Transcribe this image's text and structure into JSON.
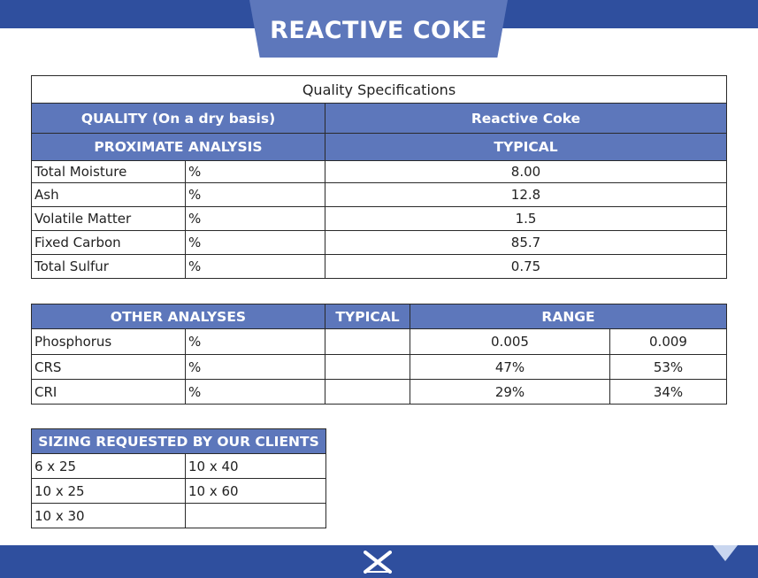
{
  "title": "REACTIVE COKE",
  "spec_table": {
    "caption": "Quality Specifications",
    "quality_header": "QUALITY (On a dry basis)",
    "product_header": "Reactive Coke",
    "section_header": "PROXIMATE ANALYSIS",
    "typical_header": "TYPICAL",
    "rows": [
      {
        "name": "Total Moisture",
        "unit": "%",
        "typical": "8.00"
      },
      {
        "name": "Ash",
        "unit": "%",
        "typical": "12.8"
      },
      {
        "name": "Volatile Matter",
        "unit": "%",
        "typical": "1.5"
      },
      {
        "name": "Fixed Carbon",
        "unit": "%",
        "typical": "85.7"
      },
      {
        "name": "Total Sulfur",
        "unit": "%",
        "typical": "0.75"
      }
    ]
  },
  "other_table": {
    "header_name": "OTHER ANALYSES",
    "header_typical": "TYPICAL",
    "header_range": "RANGE",
    "rows": [
      {
        "name": "Phosphorus",
        "unit": "%",
        "typical": "",
        "min": "0.005",
        "max": "0.009"
      },
      {
        "name": "CRS",
        "unit": "%",
        "typical": "",
        "min": "47%",
        "max": "53%"
      },
      {
        "name": "CRI",
        "unit": "%",
        "typical": "",
        "min": "29%",
        "max": "34%"
      }
    ]
  },
  "sizing_table": {
    "header": "SIZING REQUESTED BY OUR CLIENTS",
    "rows": [
      [
        "6 x 25",
        "10 x 40"
      ],
      [
        "10 x 25",
        "10 x 60"
      ],
      [
        "10 x 30",
        ""
      ]
    ]
  },
  "colors": {
    "brand_dark": "#2f4f9e",
    "header_blue": "#5d77bb"
  },
  "footer": {
    "logo_icon": "company-logo-icon"
  }
}
